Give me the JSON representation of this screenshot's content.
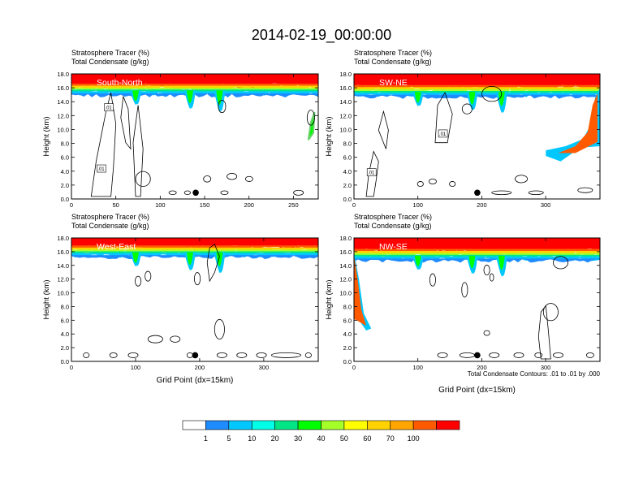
{
  "page_title": "2014-02-19_00:00:00",
  "shared": {
    "header_line1": "Stratosphere Tracer   (%)",
    "header_line2": "Total Condensate   (g/kg)",
    "ylabel": "Height (km)",
    "xlabel": "Grid Point (dx=15km)",
    "contour_info": "Total Condensate Contours: .01 to .01 by .000",
    "contour_label": ".01"
  },
  "colorbar": {
    "labels": [
      "1",
      "5",
      "10",
      "20",
      "30",
      "40",
      "50",
      "60",
      "70",
      "100"
    ],
    "colors": [
      "#ffffff",
      "#1e8cff",
      "#00c8ff",
      "#00ffe6",
      "#00e687",
      "#00ff00",
      "#a5ff28",
      "#ffff00",
      "#ffd200",
      "#ffa500",
      "#ff5a00",
      "#ff0000"
    ]
  },
  "chart_data": [
    {
      "type": "heatmap",
      "label": "South-North",
      "y_ticks": [
        "0.0",
        "2.0",
        "4.0",
        "6.0",
        "8.0",
        "10.0",
        "12.0",
        "14.0",
        "16.0",
        "18.0"
      ],
      "ylim": [
        0,
        18
      ],
      "xlim": [
        0,
        278
      ],
      "x_ticks": [
        "0",
        "50",
        "100",
        "150",
        "200",
        "250"
      ],
      "x_tick_values": [
        0,
        50,
        100,
        150,
        200,
        250
      ],
      "marker_x": 140,
      "tracer_top_band_km": [
        16.2,
        18.0
      ]
    },
    {
      "type": "heatmap",
      "label": "SW-NE",
      "y_ticks": [
        "0.0",
        "2.0",
        "4.0",
        "6.0",
        "8.0",
        "10.0",
        "12.0",
        "14.0",
        "16.0",
        "18.0"
      ],
      "ylim": [
        0,
        18
      ],
      "xlim": [
        0,
        385
      ],
      "x_ticks": [
        "0",
        "100",
        "200",
        "300"
      ],
      "x_tick_values": [
        0,
        100,
        200,
        300
      ],
      "marker_x": 193,
      "tracer_top_band_km": [
        16.0,
        18.0
      ]
    },
    {
      "type": "heatmap",
      "label": "West-East",
      "y_ticks": [
        "0.0",
        "2.0",
        "4.0",
        "6.0",
        "8.0",
        "10.0",
        "12.0",
        "14.0",
        "16.0",
        "18.0"
      ],
      "ylim": [
        0,
        18
      ],
      "xlim": [
        0,
        385
      ],
      "x_ticks": [
        "0",
        "100",
        "200",
        "300"
      ],
      "x_tick_values": [
        0,
        100,
        200,
        300
      ],
      "marker_x": 193,
      "tracer_top_band_km": [
        16.5,
        18.0
      ]
    },
    {
      "type": "heatmap",
      "label": "NW-SE",
      "y_ticks": [
        "0.0",
        "2.0",
        "4.0",
        "6.0",
        "8.0",
        "10.0",
        "12.0",
        "14.0",
        "16.0",
        "18.0"
      ],
      "ylim": [
        0,
        18
      ],
      "xlim": [
        0,
        385
      ],
      "x_ticks": [
        "0",
        "100",
        "200",
        "300"
      ],
      "x_tick_values": [
        0,
        100,
        200,
        300
      ],
      "marker_x": 193,
      "tracer_top_band_km": [
        16.0,
        18.0
      ]
    }
  ]
}
